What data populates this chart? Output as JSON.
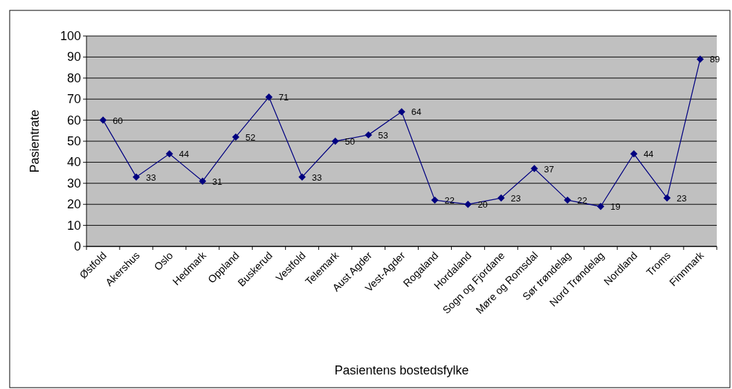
{
  "chart_data": {
    "type": "line",
    "xlabel": "Pasientens bostedsfylke",
    "ylabel": "Pasientrate",
    "categories": [
      "Østfold",
      "Akershus",
      "Oslo",
      "Hedmark",
      "Oppland",
      "Buskerud",
      "Vestfold",
      "Telemark",
      "Aust Agder",
      "Vest-Agder",
      "Rogaland",
      "Hordaland",
      "Sogn og Fjordane",
      "Møre og Romsdal",
      "Sør trøndelag",
      "Nord Trøndelag",
      "Nordland",
      "Troms",
      "Finnmark"
    ],
    "series": [
      {
        "color": "#000080",
        "values": [
          60,
          33,
          44,
          31,
          52,
          71,
          33,
          50,
          53,
          64,
          22,
          20,
          23,
          37,
          22,
          19,
          44,
          23,
          89
        ]
      }
    ],
    "ylim": [
      0,
      100
    ],
    "yticks": [
      0,
      10,
      20,
      30,
      40,
      50,
      60,
      70,
      80,
      90,
      100
    ],
    "grid": "y",
    "marker": "diamond",
    "line_style": "solid",
    "data_labels": true
  }
}
